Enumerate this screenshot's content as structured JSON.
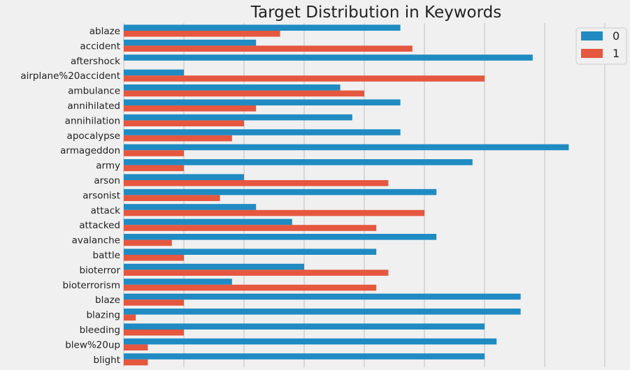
{
  "chart_data": {
    "type": "bar",
    "orientation": "horizontal",
    "title": "Target Distribution in Keywords",
    "xlabel": "",
    "ylabel": "",
    "xlim": [
      0,
      40
    ],
    "grid": true,
    "legend_position": "top-right",
    "categories": [
      "ablaze",
      "accident",
      "aftershock",
      "airplane%20accident",
      "ambulance",
      "annihilated",
      "annihilation",
      "apocalypse",
      "armageddon",
      "army",
      "arson",
      "arsonist",
      "attack",
      "attacked",
      "avalanche",
      "battle",
      "bioterror",
      "bioterrorism",
      "blaze",
      "blazing",
      "bleeding",
      "blew%20up",
      "blight"
    ],
    "series": [
      {
        "name": "0",
        "color": "#1f8bc2",
        "values": [
          23,
          11,
          34,
          5,
          18,
          23,
          19,
          23,
          37,
          29,
          10,
          26,
          11,
          14,
          26,
          21,
          15,
          9,
          33,
          33,
          30,
          31,
          30
        ]
      },
      {
        "name": "1",
        "color": "#e5573f",
        "values": [
          13,
          24,
          0,
          30,
          20,
          11,
          10,
          9,
          5,
          5,
          22,
          8,
          25,
          21,
          4,
          5,
          22,
          21,
          5,
          1,
          5,
          2,
          2
        ]
      }
    ]
  }
}
